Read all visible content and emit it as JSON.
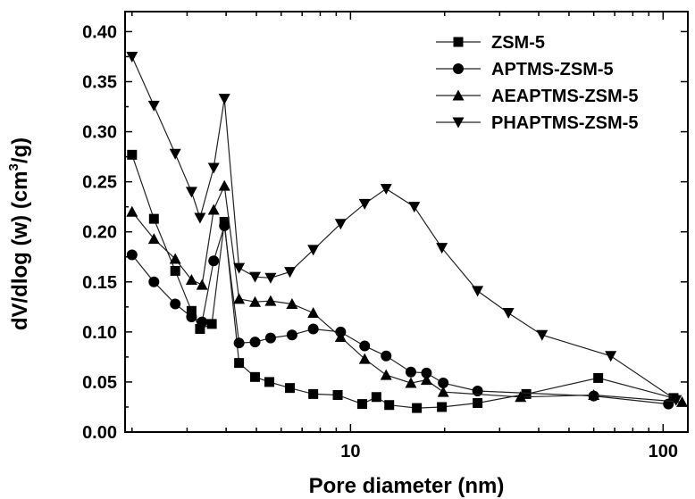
{
  "chart_data": {
    "type": "line",
    "title": "",
    "xlabel": "Pore diameter (nm)",
    "ylabel_parts": [
      "dV/dlog (w) (cm",
      "3",
      "/g)"
    ],
    "x_scale": "log",
    "xlim": [
      1.9,
      120
    ],
    "ylim": [
      0.0,
      0.42
    ],
    "x_ticks": [
      10,
      100
    ],
    "y_ticks": [
      0.0,
      0.05,
      0.1,
      0.15,
      0.2,
      0.25,
      0.3,
      0.35,
      0.4
    ],
    "legend_position": "top-right",
    "series": [
      {
        "name": "ZSM-5",
        "marker": "square",
        "x": [
          2.0,
          2.35,
          2.75,
          3.1,
          3.3,
          3.6,
          3.95,
          4.4,
          4.95,
          5.5,
          6.4,
          7.6,
          9.1,
          10.9,
          12.1,
          13.3,
          16.3,
          19.6,
          25.5,
          36.5,
          62,
          108
        ],
        "y": [
          0.277,
          0.213,
          0.161,
          0.121,
          0.103,
          0.108,
          0.21,
          0.069,
          0.055,
          0.05,
          0.044,
          0.038,
          0.037,
          0.028,
          0.035,
          0.027,
          0.024,
          0.025,
          0.029,
          0.038,
          0.054,
          0.034
        ]
      },
      {
        "name": "APTMS-ZSM-5",
        "marker": "circle",
        "x": [
          2.0,
          2.35,
          2.75,
          3.1,
          3.35,
          3.65,
          3.95,
          4.4,
          4.95,
          5.55,
          6.5,
          7.6,
          9.3,
          11.1,
          13.0,
          15.6,
          17.5,
          19.8,
          25.5,
          60,
          104
        ],
        "y": [
          0.177,
          0.15,
          0.128,
          0.115,
          0.11,
          0.171,
          0.206,
          0.089,
          0.09,
          0.094,
          0.097,
          0.103,
          0.1,
          0.086,
          0.076,
          0.06,
          0.059,
          0.049,
          0.041,
          0.036,
          0.028
        ]
      },
      {
        "name": "AEAPTMS-ZSM-5",
        "marker": "triangle-up",
        "x": [
          2.0,
          2.35,
          2.75,
          3.1,
          3.35,
          3.65,
          3.95,
          4.4,
          4.95,
          5.55,
          6.5,
          7.6,
          9.3,
          11.1,
          13.0,
          15.6,
          17.5,
          19.8,
          35,
          60,
          115
        ],
        "y": [
          0.22,
          0.193,
          0.173,
          0.152,
          0.147,
          0.222,
          0.246,
          0.133,
          0.13,
          0.131,
          0.128,
          0.119,
          0.095,
          0.073,
          0.057,
          0.049,
          0.052,
          0.04,
          0.035,
          0.037,
          0.03
        ]
      },
      {
        "name": "PHAPTMS-ZSM-5",
        "marker": "triangle-down",
        "x": [
          2.0,
          2.35,
          2.75,
          3.1,
          3.3,
          3.65,
          3.95,
          4.4,
          4.95,
          5.55,
          6.4,
          7.6,
          9.3,
          11.1,
          13.0,
          16.0,
          19.6,
          25.5,
          32,
          41,
          68,
          110
        ],
        "y": [
          0.375,
          0.326,
          0.278,
          0.24,
          0.214,
          0.264,
          0.333,
          0.164,
          0.155,
          0.154,
          0.16,
          0.182,
          0.208,
          0.228,
          0.243,
          0.225,
          0.184,
          0.141,
          0.119,
          0.097,
          0.076,
          0.032
        ]
      }
    ]
  }
}
